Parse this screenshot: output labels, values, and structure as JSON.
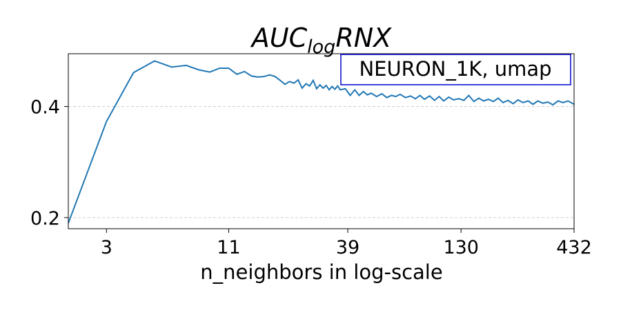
{
  "chart_data": {
    "type": "line",
    "title": {
      "main": "AUC",
      "sub": "log",
      "tail": "RNX"
    },
    "xlabel": "n_neighbors in log-scale",
    "ylabel": "",
    "x_scale": "log",
    "xlim": [
      2,
      432
    ],
    "ylim": [
      0.18,
      0.495
    ],
    "x_ticks": [
      3,
      11,
      39,
      130,
      432
    ],
    "x_tick_labels": [
      "3",
      "11",
      "39",
      "130",
      "432"
    ],
    "y_ticks": [
      0.2,
      0.4
    ],
    "y_tick_labels": [
      "0.2",
      "0.4"
    ],
    "grid": "horizontal dashed",
    "legend_box": {
      "text": "NEURON_1K, umap",
      "placement": "top-right",
      "border_color": "#0000cc"
    },
    "colors": {
      "line": "#1f77b4"
    },
    "series": [
      {
        "x": [
          2,
          3,
          4,
          5,
          6,
          7,
          8,
          9,
          10,
          11,
          12,
          13,
          14,
          15,
          16,
          17,
          18,
          19,
          20,
          21,
          22,
          23,
          24,
          25,
          26,
          27,
          28,
          29,
          30,
          31,
          32,
          33,
          34,
          35,
          36,
          38,
          40,
          42,
          44,
          46,
          48,
          50,
          53,
          56,
          59,
          62,
          65,
          68,
          72,
          76,
          80,
          84,
          88,
          93,
          98,
          103,
          108,
          114,
          120,
          127,
          134,
          141,
          149,
          157,
          165,
          174,
          183,
          193,
          203,
          214,
          226,
          238,
          251,
          265,
          279,
          294,
          310,
          327,
          345,
          364,
          384,
          405,
          432
        ],
        "values": [
          0.19,
          0.373,
          0.461,
          0.482,
          0.471,
          0.474,
          0.466,
          0.462,
          0.469,
          0.469,
          0.458,
          0.463,
          0.455,
          0.453,
          0.454,
          0.457,
          0.454,
          0.447,
          0.44,
          0.445,
          0.442,
          0.448,
          0.433,
          0.441,
          0.437,
          0.447,
          0.432,
          0.439,
          0.433,
          0.438,
          0.43,
          0.436,
          0.431,
          0.437,
          0.43,
          0.432,
          0.42,
          0.43,
          0.42,
          0.427,
          0.421,
          0.424,
          0.418,
          0.423,
          0.416,
          0.42,
          0.418,
          0.422,
          0.416,
          0.419,
          0.414,
          0.42,
          0.413,
          0.419,
          0.411,
          0.418,
          0.41,
          0.417,
          0.412,
          0.414,
          0.411,
          0.42,
          0.409,
          0.415,
          0.41,
          0.413,
          0.409,
          0.415,
          0.407,
          0.411,
          0.405,
          0.412,
          0.407,
          0.41,
          0.404,
          0.41,
          0.406,
          0.408,
          0.403,
          0.41,
          0.407,
          0.41,
          0.404
        ]
      }
    ]
  }
}
